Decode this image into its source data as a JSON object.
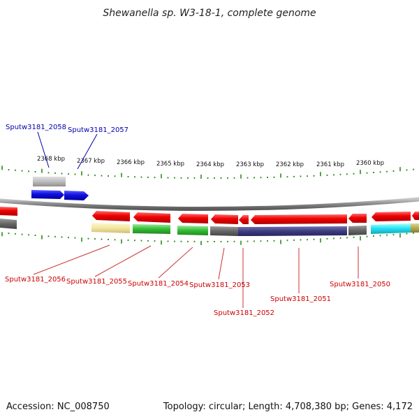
{
  "title": "Shewanella sp. W3-18-1, complete genome",
  "footer": {
    "accession": "Accession: NC_008750",
    "summary": "Topology: circular; Length: 4,708,380 bp; Genes: 4,172"
  },
  "colors": {
    "backbone": "#8a8a8a",
    "tick": "#2a8a1a",
    "forward_label": "#0000aa",
    "reverse_label": "#cc0000",
    "leader_line": "#cc3333"
  },
  "kbp_labels": [
    "2368 kbp",
    "2367 kbp",
    "2366 kbp",
    "2365 kbp",
    "2364 kbp",
    "2363 kbp",
    "2362 kbp",
    "2361 kbp",
    "2360 kbp"
  ],
  "forward_genes": [
    {
      "label": "Sputw3181_2058",
      "color": "#1010e0"
    },
    {
      "label": "Sputw3181_2057",
      "color": "#1010e0"
    }
  ],
  "reverse_genes": [
    {
      "label": "Sputw3181_2056",
      "arrow_color": "#ee0000",
      "band_color": "#f0e6a0"
    },
    {
      "label": "Sputw3181_2055",
      "arrow_color": "#ee0000",
      "band_color": "#33bb33"
    },
    {
      "label": "Sputw3181_2054",
      "arrow_color": "#ee0000",
      "band_color": "#33bb33"
    },
    {
      "label": "Sputw3181_2053",
      "arrow_color": "#ee0000",
      "band_color": "#666666"
    },
    {
      "label": "Sputw3181_2052",
      "arrow_color": "#ee0000",
      "band_color": "#4a4a8a"
    },
    {
      "label": "Sputw3181_2051",
      "arrow_color": "#ee0000",
      "band_color": "#3c3c80"
    },
    {
      "label": "Sputw3181_2050",
      "arrow_color": "#ee0000",
      "band_color": "#666666"
    }
  ]
}
